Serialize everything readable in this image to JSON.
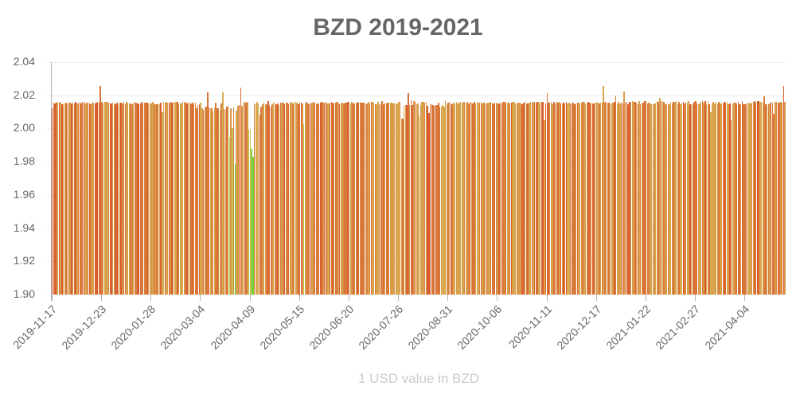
{
  "chart_data": {
    "type": "bar",
    "title": "BZD 2019-2021",
    "xlabel": "1 USD value in BZD",
    "ylabel": "",
    "ylim": [
      1.9,
      2.04
    ],
    "yticks": [
      "2.04",
      "2.02",
      "2.00",
      "1.98",
      "1.96",
      "1.94",
      "1.92",
      "1.90"
    ],
    "xticks": [
      "2019-11-17",
      "2019-12-23",
      "2020-01-28",
      "2020-03-04",
      "2020-04-09",
      "2020-05-15",
      "2020-06-20",
      "2020-07-26",
      "2020-08-31",
      "2020-10-06",
      "2020-11-11",
      "2020-12-17",
      "2021-01-22",
      "2021-02-27",
      "2021-04-04"
    ],
    "x_start": "2019-11-17",
    "x_end": "2021-05-03",
    "grid": true,
    "legend": "none",
    "color_scale": {
      "high": "#d9532b",
      "mid": "#d8c35a",
      "low": "#4fd62a"
    },
    "typical_value": 2.0155,
    "segments": [
      {
        "from": "2019-11-17",
        "to": "2019-12-31",
        "base": 2.0155,
        "jitter": 0.0008,
        "spikes": [
          {
            "date": "2019-12-22",
            "value": 2.0255
          },
          {
            "date": "2019-11-17",
            "value": 2.012
          }
        ]
      },
      {
        "from": "2020-01-01",
        "to": "2020-02-29",
        "base": 2.0155,
        "jitter": 0.0008,
        "spikes": [
          {
            "date": "2020-02-05",
            "value": 2.01
          }
        ]
      },
      {
        "from": "2020-03-01",
        "to": "2020-03-31",
        "base": 2.013,
        "jitter": 0.003,
        "spikes": [
          {
            "date": "2020-03-09",
            "value": 2.022
          },
          {
            "date": "2020-03-20",
            "value": 2.022
          },
          {
            "date": "2020-03-25",
            "value": 1.995
          },
          {
            "date": "2020-03-27",
            "value": 2.0
          },
          {
            "date": "2020-03-29",
            "value": 1.9785
          }
        ]
      },
      {
        "from": "2020-04-01",
        "to": "2020-04-30",
        "base": 2.015,
        "jitter": 0.002,
        "spikes": [
          {
            "date": "2020-04-02",
            "value": 2.0245
          },
          {
            "date": "2020-04-08",
            "value": 1.9995
          },
          {
            "date": "2020-04-09",
            "value": 1.9995
          },
          {
            "date": "2020-04-10",
            "value": 1.988
          },
          {
            "date": "2020-04-11",
            "value": 1.983
          },
          {
            "date": "2020-04-16",
            "value": 2.0085
          }
        ]
      },
      {
        "from": "2020-05-01",
        "to": "2020-07-25",
        "base": 2.0155,
        "jitter": 0.0008,
        "spikes": [
          {
            "date": "2020-05-18",
            "value": 2.0025
          }
        ]
      },
      {
        "from": "2020-07-26",
        "to": "2020-08-31",
        "base": 2.015,
        "jitter": 0.002,
        "spikes": [
          {
            "date": "2020-07-28",
            "value": 2.006
          },
          {
            "date": "2020-07-29",
            "value": 2.006
          },
          {
            "date": "2020-08-02",
            "value": 2.0215
          },
          {
            "date": "2020-08-10",
            "value": 2.008
          },
          {
            "date": "2020-08-17",
            "value": 2.0095
          }
        ]
      },
      {
        "from": "2020-09-01",
        "to": "2020-12-31",
        "base": 2.0155,
        "jitter": 0.0008,
        "spikes": [
          {
            "date": "2020-11-11",
            "value": 2.0215
          },
          {
            "date": "2020-11-09",
            "value": 2.005
          },
          {
            "date": "2020-12-22",
            "value": 2.0255
          },
          {
            "date": "2020-12-31",
            "value": 2.02
          }
        ]
      },
      {
        "from": "2021-01-01",
        "to": "2021-05-03",
        "base": 2.0155,
        "jitter": 0.001,
        "spikes": [
          {
            "date": "2021-01-06",
            "value": 2.0225
          },
          {
            "date": "2021-02-01",
            "value": 2.0185
          },
          {
            "date": "2021-03-10",
            "value": 2.01
          },
          {
            "date": "2021-03-25",
            "value": 2.005
          },
          {
            "date": "2021-04-18",
            "value": 2.0195
          },
          {
            "date": "2021-04-25",
            "value": 2.009
          },
          {
            "date": "2021-05-02",
            "value": 2.0255
          }
        ]
      }
    ]
  }
}
